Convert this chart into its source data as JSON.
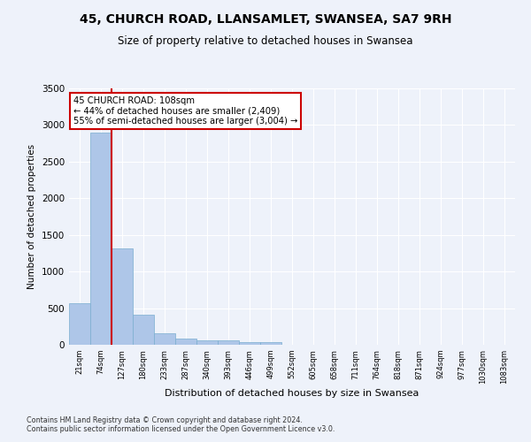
{
  "title": "45, CHURCH ROAD, LLANSAMLET, SWANSEA, SA7 9RH",
  "subtitle": "Size of property relative to detached houses in Swansea",
  "xlabel": "Distribution of detached houses by size in Swansea",
  "ylabel": "Number of detached properties",
  "footer_line1": "Contains HM Land Registry data © Crown copyright and database right 2024.",
  "footer_line2": "Contains public sector information licensed under the Open Government Licence v3.0.",
  "bin_labels": [
    "21sqm",
    "74sqm",
    "127sqm",
    "180sqm",
    "233sqm",
    "287sqm",
    "340sqm",
    "393sqm",
    "446sqm",
    "499sqm",
    "552sqm",
    "605sqm",
    "658sqm",
    "711sqm",
    "764sqm",
    "818sqm",
    "871sqm",
    "924sqm",
    "977sqm",
    "1030sqm",
    "1083sqm"
  ],
  "bar_values": [
    570,
    2900,
    1320,
    410,
    155,
    80,
    60,
    55,
    40,
    35,
    0,
    0,
    0,
    0,
    0,
    0,
    0,
    0,
    0,
    0,
    0
  ],
  "bar_color": "#aec6e8",
  "bar_edge_color": "#7aaed0",
  "vline_x": 1.5,
  "annotation_line1": "45 CHURCH ROAD: 108sqm",
  "annotation_line2": "← 44% of detached houses are smaller (2,409)",
  "annotation_line3": "55% of semi-detached houses are larger (3,004) →",
  "annotation_box_color": "#ffffff",
  "annotation_box_edge": "#cc0000",
  "vline_color": "#cc0000",
  "background_color": "#eef2fa",
  "grid_color": "#ffffff",
  "ylim": [
    0,
    3500
  ],
  "yticks": [
    0,
    500,
    1000,
    1500,
    2000,
    2500,
    3000,
    3500
  ]
}
